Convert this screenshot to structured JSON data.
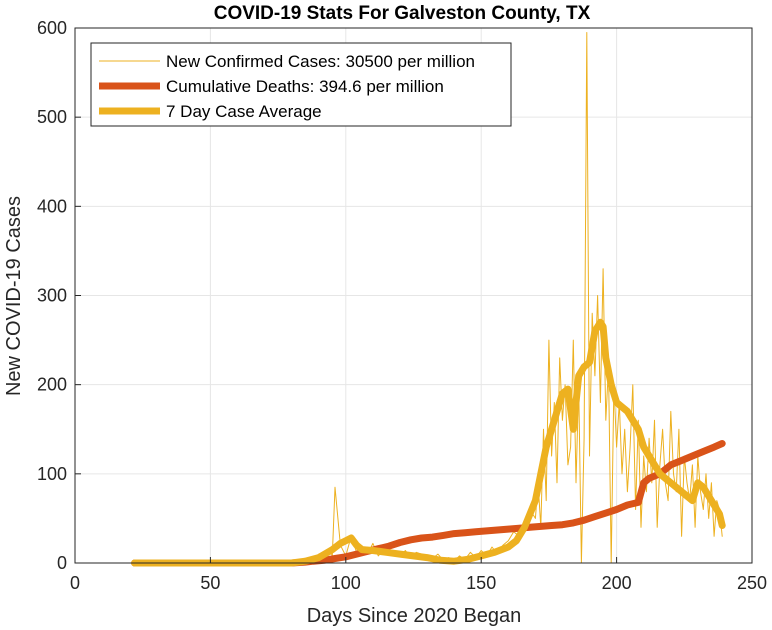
{
  "chart_data": {
    "type": "line",
    "title": "COVID-19 Stats For Galveston County, TX",
    "xlabel": "Days Since 2020 Began",
    "ylabel": "New COVID-19 Cases",
    "xlim": [
      0,
      250
    ],
    "ylim": [
      0,
      600
    ],
    "xticks": [
      "0",
      "50",
      "100",
      "150",
      "200",
      "250"
    ],
    "yticks": [
      "0",
      "100",
      "200",
      "300",
      "400",
      "500",
      "600"
    ],
    "grid": true,
    "legend_position": "top-left",
    "series": [
      {
        "name": "New Confirmed Cases: 30500 per million",
        "color": "#EDB120",
        "style": "thin",
        "x": [
          22,
          80,
          84,
          86,
          88,
          90,
          92,
          94,
          95,
          96,
          98,
          100,
          102,
          104,
          106,
          108,
          110,
          112,
          114,
          116,
          118,
          120,
          122,
          124,
          126,
          128,
          130,
          132,
          134,
          136,
          138,
          140,
          142,
          144,
          146,
          148,
          150,
          152,
          154,
          156,
          158,
          160,
          162,
          164,
          166,
          168,
          170,
          171,
          172,
          173,
          174,
          175,
          176,
          177,
          178,
          179,
          180,
          181,
          182,
          183,
          184,
          185,
          186,
          187,
          188,
          189,
          190,
          191,
          192,
          193,
          194,
          195,
          196,
          197,
          198,
          199,
          200,
          201,
          202,
          203,
          204,
          205,
          206,
          207,
          208,
          209,
          210,
          211,
          212,
          213,
          214,
          215,
          216,
          217,
          218,
          219,
          220,
          221,
          222,
          223,
          224,
          225,
          226,
          227,
          228,
          229,
          230,
          231,
          232,
          233,
          234,
          235,
          236,
          237,
          238,
          239
        ],
        "values": [
          0,
          0,
          3,
          6,
          2,
          10,
          4,
          15,
          8,
          85,
          20,
          8,
          30,
          12,
          18,
          10,
          22,
          8,
          15,
          12,
          10,
          8,
          14,
          6,
          12,
          10,
          8,
          5,
          10,
          3,
          6,
          2,
          8,
          4,
          12,
          6,
          14,
          8,
          18,
          10,
          20,
          25,
          35,
          30,
          45,
          60,
          50,
          90,
          40,
          150,
          70,
          250,
          120,
          180,
          90,
          230,
          160,
          200,
          110,
          130,
          250,
          90,
          200,
          0,
          140,
          595,
          120,
          280,
          210,
          300,
          180,
          330,
          160,
          220,
          0,
          200,
          130,
          180,
          100,
          150,
          80,
          130,
          200,
          60,
          160,
          40,
          120,
          80,
          140,
          90,
          160,
          40,
          110,
          150,
          90,
          70,
          170,
          100,
          80,
          150,
          30,
          120,
          90,
          70,
          110,
          40,
          120,
          80,
          60,
          100,
          50,
          90,
          30,
          70,
          60,
          30
        ]
      },
      {
        "name": "Cumulative Deaths: 394.6 per million",
        "color": "#D95319",
        "style": "thick",
        "x": [
          22,
          80,
          85,
          88,
          92,
          96,
          100,
          104,
          108,
          112,
          116,
          120,
          124,
          128,
          132,
          136,
          140,
          144,
          148,
          152,
          156,
          160,
          164,
          168,
          172,
          176,
          180,
          184,
          188,
          192,
          196,
          200,
          204,
          208,
          210,
          212,
          216,
          220,
          224,
          228,
          232,
          236,
          239
        ],
        "values": [
          0,
          0,
          1,
          2,
          3,
          5,
          7,
          10,
          13,
          16,
          19,
          23,
          26,
          28,
          29,
          31,
          33,
          34,
          35,
          36,
          37,
          38,
          39,
          40,
          41,
          42,
          43,
          45,
          48,
          52,
          56,
          60,
          65,
          68,
          90,
          95,
          100,
          110,
          115,
          120,
          125,
          130,
          134
        ]
      },
      {
        "name": "7 Day Case Average",
        "color": "#EDB120",
        "style": "thick",
        "x": [
          22,
          80,
          85,
          90,
          95,
          98,
          100,
          102,
          104,
          106,
          110,
          115,
          120,
          125,
          130,
          135,
          140,
          145,
          150,
          155,
          160,
          163,
          166,
          170,
          172,
          174,
          176,
          178,
          180,
          182,
          184,
          186,
          188,
          190,
          192,
          194,
          195,
          196,
          198,
          200,
          202,
          204,
          206,
          208,
          210,
          212,
          214,
          216,
          218,
          220,
          222,
          224,
          226,
          228,
          230,
          232,
          234,
          236,
          238,
          239
        ],
        "values": [
          0,
          0,
          2,
          6,
          15,
          22,
          25,
          28,
          20,
          15,
          14,
          12,
          10,
          8,
          6,
          3,
          2,
          4,
          8,
          12,
          18,
          25,
          40,
          70,
          100,
          130,
          150,
          170,
          190,
          195,
          150,
          210,
          220,
          225,
          260,
          270,
          265,
          230,
          200,
          180,
          175,
          170,
          160,
          150,
          130,
          120,
          110,
          100,
          95,
          90,
          85,
          80,
          75,
          70,
          90,
          85,
          75,
          65,
          55,
          42
        ]
      }
    ]
  }
}
